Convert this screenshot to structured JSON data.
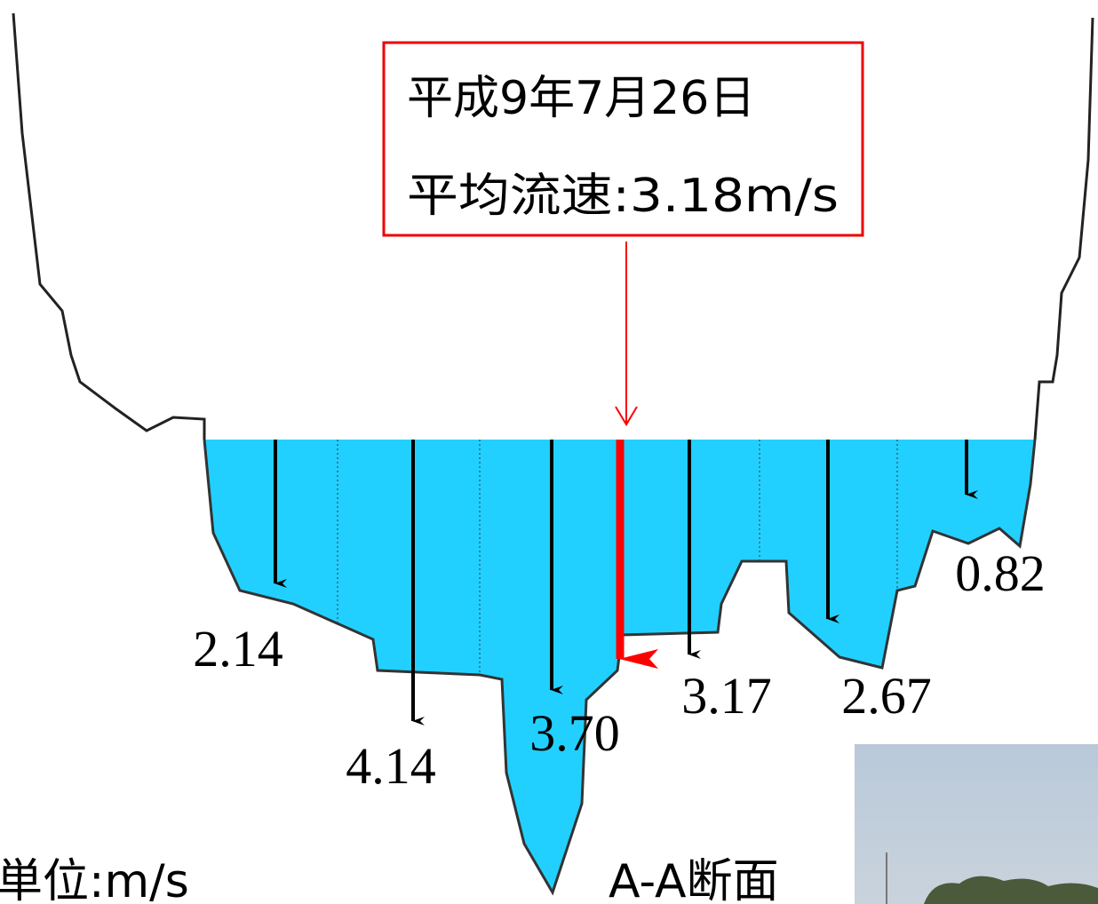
{
  "callout": {
    "date": "平成9年7月26日",
    "mean_velocity": "平均流速:3.18m/s"
  },
  "velocities": [
    "2.14",
    "4.14",
    "3.70",
    "3.17",
    "2.67",
    "0.82"
  ],
  "unit": "単位:m/s",
  "section_label": "A-A断面"
}
